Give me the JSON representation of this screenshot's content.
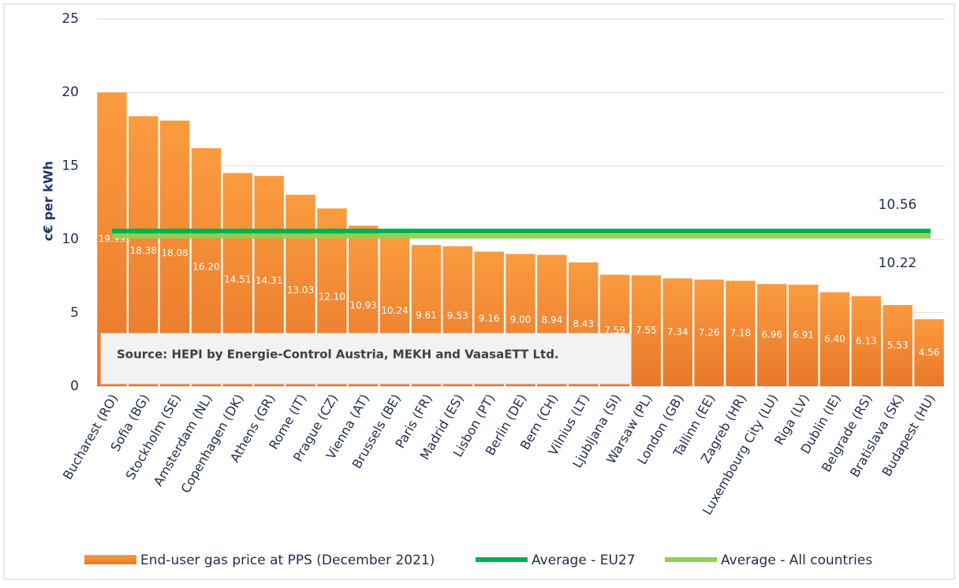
{
  "chart_data": {
    "type": "bar",
    "y_label": "c€ per kWh",
    "annotation": "Source: HEPI by Energie-Control Austria, MEKH and VaasaETT Ltd.",
    "categories": [
      "Bucharest (RO)",
      "Sofia (BG)",
      "Stockholm (SE)",
      "Amsterdam (NL)",
      "Copenhagen (DK)",
      "Athens (GR)",
      "Rome (IT)",
      "Prague (CZ)",
      "Vienna (AT)",
      "Brussels (BE)",
      "Paris (FR)",
      "Madrid (ES)",
      "Lisbon (PT)",
      "Berlin (DE)",
      "Bern (CH)",
      "Vilnius (LT)",
      "Ljubljana (SI)",
      "Warsaw (PL)",
      "London (GB)",
      "Tallinn (EE)",
      "Zagreb (HR)",
      "Luxembourg City (LU)",
      "Riga (LV)",
      "Dublin (IE)",
      "Belgrade (RS)",
      "Bratislava (SK)",
      "Budapest (HU)"
    ],
    "series": [
      {
        "name": "End-user gas price at PPS (December 2021)",
        "color": "#f7923a",
        "values": [
          19.99,
          18.38,
          18.08,
          16.2,
          14.51,
          14.31,
          13.03,
          12.1,
          10.93,
          10.24,
          9.61,
          9.53,
          9.16,
          9.0,
          8.94,
          8.43,
          7.59,
          7.55,
          7.34,
          7.26,
          7.18,
          6.96,
          6.91,
          6.4,
          6.13,
          5.53,
          4.56
        ],
        "value_labels": [
          "19.99",
          "18.38",
          "18.08",
          "16.20",
          "14.51",
          "14.31",
          "13.03",
          "12.10",
          "10.93",
          "10.24",
          "9.61",
          "9.53",
          "9.16",
          "9.00",
          "8.94",
          "8.43",
          "7.59",
          "7.55",
          "7.34",
          "7.26",
          "7.18",
          "6.96",
          "6.91",
          "6.40",
          "6.13",
          "5.53",
          "4.56"
        ]
      },
      {
        "name": "Average - EU27",
        "type": "line",
        "color": "#00b050",
        "value": 10.56
      },
      {
        "name": "Average - All countries",
        "type": "line",
        "color": "#92d050",
        "value": 10.22
      }
    ],
    "ylim": [
      0,
      25
    ],
    "yticks": [
      0,
      5,
      10,
      15,
      20,
      25
    ],
    "grid": true
  }
}
